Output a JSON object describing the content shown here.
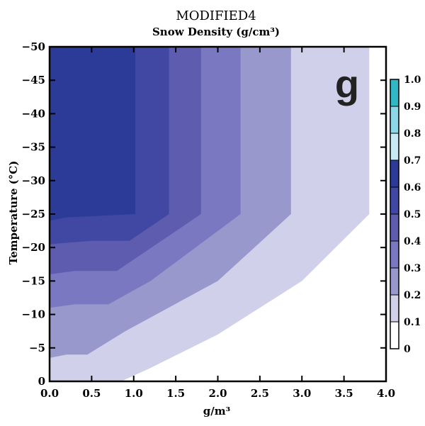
{
  "chart_data": {
    "type": "contour",
    "title": "MODIFIED4",
    "subtitle": "Snow Density (g/cm³)",
    "xlabel": "g/m³",
    "ylabel": "Temperature (°C)",
    "panel_label": "g",
    "xlim": [
      0,
      4
    ],
    "ylim": [
      0,
      -50
    ],
    "y_reversed": true,
    "xticks": [
      0,
      0.5,
      1,
      1.5,
      2,
      2.5,
      3,
      3.5,
      4
    ],
    "xtick_labels": [
      "0.0",
      "0.5",
      "1.0",
      "1.5",
      "2.0",
      "2.5",
      "3.0",
      "3.5",
      "4.0"
    ],
    "yticks": [
      0,
      -5,
      -10,
      -15,
      -20,
      -25,
      -30,
      -35,
      -40,
      -45,
      -50
    ],
    "ytick_labels": [
      "0",
      "−5",
      "−10",
      "−15",
      "−20",
      "−25",
      "−30",
      "−35",
      "−40",
      "−45",
      "−50"
    ],
    "colorbar": {
      "levels": [
        0,
        0.1,
        0.2,
        0.3,
        0.4,
        0.5,
        0.6,
        0.7,
        0.8,
        0.9,
        1.0
      ],
      "labels": [
        "0",
        "0.1",
        "0.2",
        "0.3",
        "0.4",
        "0.5",
        "0.6",
        "0.7",
        "0.8",
        "0.9",
        "1.0"
      ],
      "colors": [
        "#ffffff",
        "#d0d0ea",
        "#9898cc",
        "#7a78c0",
        "#5e5cae",
        "#4048a4",
        "#2c3a98",
        "#c8eaf4",
        "#8cd8e8",
        "#30b8c4"
      ]
    },
    "regions": [
      {
        "level": [
          0.1,
          0.2
        ],
        "color": "#d0d0ea",
        "polygon": [
          [
            0,
            0
          ],
          [
            0,
            -4
          ],
          [
            0.3,
            -4.5
          ],
          [
            0.9,
            -5
          ],
          [
            0.9,
            -7
          ],
          [
            1.2,
            -9
          ],
          [
            2.2,
            -17
          ],
          [
            3.3,
            -24
          ],
          [
            3.8,
            -25
          ],
          [
            3.8,
            -50
          ],
          [
            2.87,
            -50
          ],
          [
            2.87,
            -25
          ],
          [
            2.2,
            -21
          ],
          [
            1.4,
            -15
          ],
          [
            0.5,
            -8
          ],
          [
            0.4,
            -4
          ],
          [
            0.2,
            -3.5
          ],
          [
            0,
            -3.3
          ],
          [
            0,
            -50
          ],
          [
            0,
            0
          ]
        ]
      },
      {
        "level": [
          0.2,
          0.3
        ],
        "color": "#9898cc"
      },
      {
        "level": [
          0.3,
          0.4
        ],
        "color": "#7a78c0"
      },
      {
        "level": [
          0.4,
          0.5
        ],
        "color": "#5e5cae"
      },
      {
        "level": [
          0.5,
          0.6
        ],
        "color": "#4048a4"
      },
      {
        "level": [
          0.6,
          0.7
        ],
        "color": "#2c3a98"
      }
    ]
  }
}
